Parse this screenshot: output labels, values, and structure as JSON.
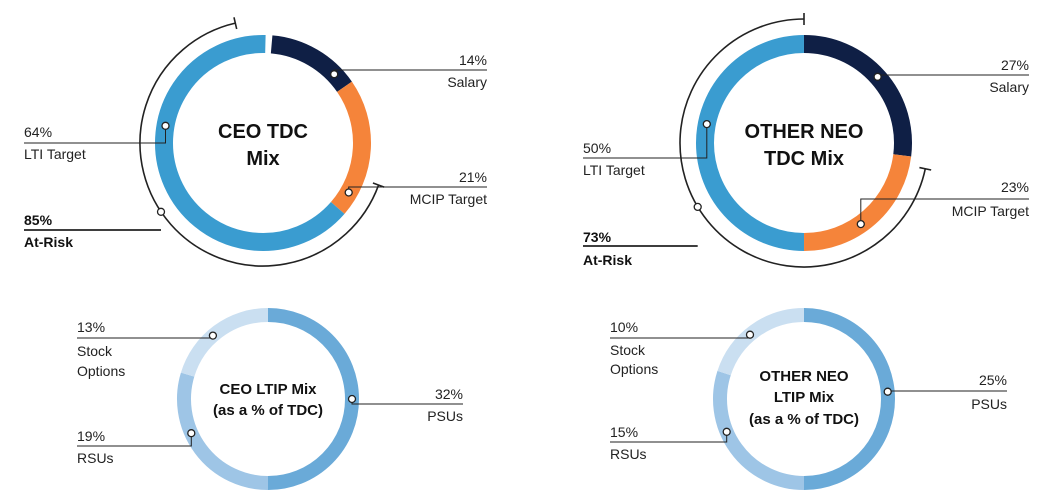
{
  "colors": {
    "salary": "#0f1f45",
    "mcip": "#f5843a",
    "lti": "#3a9cd0",
    "psus": "#6aaad8",
    "rsus": "#9ec5e6",
    "options": "#cadff1",
    "line": "#222222"
  },
  "chart_data": [
    {
      "type": "pie",
      "title_lines": [
        "CEO TDC",
        "Mix"
      ],
      "segments": [
        {
          "name": "Salary",
          "value": 14
        },
        {
          "name": "MCIP Target",
          "value": 21
        },
        {
          "name": "LTI Target",
          "value": 64
        }
      ],
      "labels": [
        {
          "value": "14%",
          "name_lines": [
            "Salary"
          ]
        },
        {
          "value": "21%",
          "name_lines": [
            "MCIP Target"
          ]
        },
        {
          "value": "64%",
          "name_lines": [
            "LTI Target"
          ]
        }
      ],
      "at_risk": {
        "value": "85%",
        "label": "At-Risk"
      }
    },
    {
      "type": "pie",
      "title_lines": [
        "OTHER NEO",
        "TDC Mix"
      ],
      "segments": [
        {
          "name": "Salary",
          "value": 27
        },
        {
          "name": "MCIP Target",
          "value": 23
        },
        {
          "name": "LTI Target",
          "value": 50
        }
      ],
      "labels": [
        {
          "value": "27%",
          "name_lines": [
            "Salary"
          ]
        },
        {
          "value": "23%",
          "name_lines": [
            "MCIP Target"
          ]
        },
        {
          "value": "50%",
          "name_lines": [
            "LTI Target"
          ]
        }
      ],
      "at_risk": {
        "value": "73%",
        "label": "At-Risk"
      }
    },
    {
      "type": "pie",
      "title_lines": [
        "CEO LTIP Mix",
        "(as a % of TDC)"
      ],
      "segments": [
        {
          "name": "PSUs",
          "value": 32
        },
        {
          "name": "RSUs",
          "value": 19
        },
        {
          "name": "Stock Options",
          "value": 13
        }
      ],
      "labels": [
        {
          "value": "32%",
          "name_lines": [
            "PSUs"
          ]
        },
        {
          "value": "19%",
          "name_lines": [
            "RSUs"
          ]
        },
        {
          "value": "13%",
          "name_lines": [
            "Stock",
            "Options"
          ]
        }
      ]
    },
    {
      "type": "pie",
      "title_lines": [
        "OTHER NEO",
        "LTIP Mix",
        "(as a % of TDC)"
      ],
      "segments": [
        {
          "name": "PSUs",
          "value": 25
        },
        {
          "name": "RSUs",
          "value": 15
        },
        {
          "name": "Stock Options",
          "value": 10
        }
      ],
      "labels": [
        {
          "value": "25%",
          "name_lines": [
            "PSUs"
          ]
        },
        {
          "value": "15%",
          "name_lines": [
            "RSUs"
          ]
        },
        {
          "value": "10%",
          "name_lines": [
            "Stock",
            "Options"
          ]
        }
      ]
    }
  ]
}
